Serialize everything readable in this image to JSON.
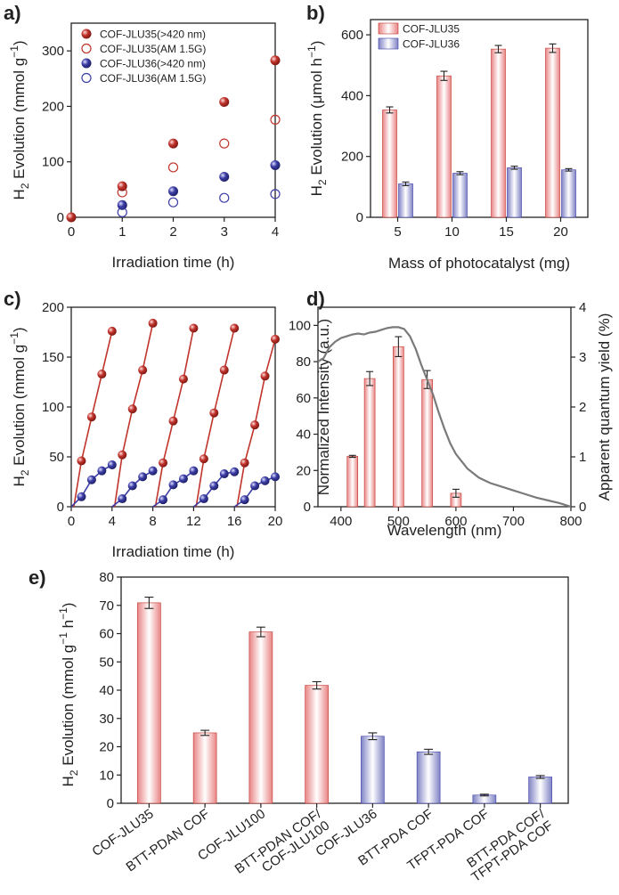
{
  "colors": {
    "red": "#c0342c",
    "red_light": "#f4a5a5",
    "blue": "#3c3ea6",
    "blue_light": "#b2b4da",
    "curve": "#7a7a7a",
    "axis": "#222222"
  },
  "chart_data": [
    {
      "id": "a",
      "panel_label": "a)",
      "type": "scatter",
      "xlabel": "Irradiation time (h)",
      "ylabel_main": "H",
      "ylabel_sub": "2",
      "ylabel_rest": " Evolution (mmol g",
      "ylabel_sup": "−1",
      "ylabel_end": ")",
      "xlim": [
        0,
        4
      ],
      "ylim": [
        0,
        350
      ],
      "xticks": [
        0,
        1,
        2,
        3,
        4
      ],
      "yticks": [
        0,
        100,
        200,
        300
      ],
      "legend_position": "top-left",
      "series": [
        {
          "name": "COF-JLU35(>420 nm)",
          "marker": "filled",
          "color": "red",
          "x": [
            0,
            1,
            2,
            3,
            4
          ],
          "y": [
            0,
            56,
            133,
            208,
            283
          ]
        },
        {
          "name": "COF-JLU35(AM 1.5G)",
          "marker": "open",
          "color": "red",
          "x": [
            1,
            2,
            3,
            4
          ],
          "y": [
            45,
            90,
            133,
            176
          ]
        },
        {
          "name": "COF-JLU36(>420 nm)",
          "marker": "filled",
          "color": "blue",
          "x": [
            1,
            2,
            3,
            4
          ],
          "y": [
            22,
            47,
            73,
            94
          ]
        },
        {
          "name": "COF-JLU36(AM 1.5G)",
          "marker": "open",
          "color": "blue",
          "x": [
            1,
            2,
            3,
            4
          ],
          "y": [
            9,
            27,
            35,
            42
          ]
        }
      ]
    },
    {
      "id": "b",
      "panel_label": "b)",
      "type": "bar",
      "xlabel": "Mass of photocatalyst (mg)",
      "ylabel_main": "H",
      "ylabel_sub": "2",
      "ylabel_rest": " Evolution (",
      "ylabel_mu": "μmol h",
      "ylabel_sup": "−1",
      "ylabel_end": ")",
      "ylim": [
        0,
        650
      ],
      "yticks": [
        0,
        200,
        400,
        600
      ],
      "categories": [
        "5",
        "10",
        "15",
        "20"
      ],
      "legend_position": "top-left",
      "series": [
        {
          "name": "COF-JLU35",
          "color": "red",
          "values": [
            353,
            465,
            553,
            556
          ],
          "errors": [
            10,
            15,
            12,
            14
          ]
        },
        {
          "name": "COF-JLU36",
          "color": "blue",
          "values": [
            110,
            145,
            163,
            156
          ],
          "errors": [
            6,
            5,
            5,
            4
          ]
        }
      ]
    },
    {
      "id": "c",
      "panel_label": "c)",
      "type": "line",
      "xlabel": "Irradiation time (h)",
      "ylabel_main": "H",
      "ylabel_sub": "2",
      "ylabel_rest": " Evolution (mmol g",
      "ylabel_sup": "−1",
      "ylabel_end": ")",
      "xlim": [
        0,
        20
      ],
      "ylim": [
        0,
        200
      ],
      "xticks": [
        0,
        4,
        8,
        12,
        16,
        20
      ],
      "yticks": [
        0,
        50,
        100,
        150,
        200
      ],
      "series": [
        {
          "name": "",
          "color": "red",
          "x": [
            0.25,
            1,
            2,
            3,
            4
          ],
          "y": [
            0,
            46,
            90,
            133,
            176
          ],
          "cycle_start": 4,
          "cycles": 5
        },
        {
          "name": "",
          "color": "blue",
          "x": [
            0,
            1,
            2,
            3,
            4
          ],
          "y": [
            0,
            10,
            27,
            36,
            42
          ],
          "cycle_start": 4,
          "cycles": 5
        }
      ]
    },
    {
      "id": "d",
      "panel_label": "d)",
      "type": "bar",
      "xlabel": "Wavelength (nm)",
      "ylabel_left": "Normalized Intensity (a.u.)",
      "ylabel_right": "Apparent quantum yield (%)",
      "xlim": [
        360,
        800
      ],
      "ylim_left": [
        0,
        110
      ],
      "ylim_right": [
        0,
        4
      ],
      "xticks": [
        400,
        500,
        600,
        700,
        800
      ],
      "yticks_left": [
        0,
        20,
        40,
        60,
        80,
        100
      ],
      "yticks_right": [
        0,
        1,
        2,
        3,
        4
      ],
      "bars": {
        "wavelength": [
          420,
          450,
          500,
          550,
          600
        ],
        "values": [
          1.01,
          2.57,
          3.21,
          2.55,
          0.27
        ],
        "errors": [
          0.02,
          0.14,
          0.2,
          0.18,
          0.08
        ]
      },
      "absorption": {
        "x": [
          360,
          370,
          380,
          390,
          400,
          410,
          420,
          430,
          440,
          450,
          460,
          470,
          480,
          490,
          500,
          510,
          520,
          530,
          540,
          550,
          560,
          570,
          580,
          590,
          600,
          620,
          640,
          660,
          680,
          700,
          720,
          740,
          760,
          780,
          800
        ],
        "y": [
          80,
          82,
          88,
          91,
          93,
          94,
          95,
          95.5,
          95,
          96,
          96.5,
          97.5,
          98.5,
          99,
          99,
          98,
          94,
          87,
          78,
          70,
          62,
          52,
          43,
          35,
          29,
          21,
          16,
          13,
          11,
          9,
          7,
          5,
          3.5,
          2,
          0
        ]
      }
    },
    {
      "id": "e",
      "panel_label": "e)",
      "type": "bar",
      "ylabel_main": "H",
      "ylabel_sub": "2",
      "ylabel_rest": " Evolution (mmol g",
      "ylabel_sup1": "−1",
      "ylabel_mid": " h",
      "ylabel_sup2": "−1",
      "ylabel_end": ")",
      "ylim": [
        0,
        80
      ],
      "yticks": [
        0,
        10,
        20,
        30,
        40,
        50,
        60,
        70,
        80
      ],
      "categories": [
        "COF-JLU35",
        "BTT-PDAN COF",
        "COF-JLU100",
        "BTT-PDAN COF/ COF-JLU100",
        "COF-JLU36",
        "BTT-PDA COF",
        "TFPT-PDA COF",
        "BTT-PDA COF/ TFPT-PDA COF"
      ],
      "category_lines": [
        [
          "COF-JLU35"
        ],
        [
          "BTT-PDAN COF"
        ],
        [
          "COF-JLU100"
        ],
        [
          "BTT-PDAN COF/",
          "COF-JLU100"
        ],
        [
          "COF-JLU36"
        ],
        [
          "BTT-PDA COF"
        ],
        [
          "TFPT-PDA COF"
        ],
        [
          "BTT-PDA COF/",
          "TFPT-PDA COF"
        ]
      ],
      "values": [
        70.9,
        24.9,
        60.6,
        41.7,
        23.7,
        18.2,
        2.9,
        9.3
      ],
      "errors": [
        2.0,
        0.9,
        1.7,
        1.3,
        1.2,
        0.9,
        0.3,
        0.5
      ],
      "bar_colors": [
        "red",
        "red",
        "red",
        "red",
        "blue",
        "blue",
        "blue",
        "blue"
      ]
    }
  ]
}
